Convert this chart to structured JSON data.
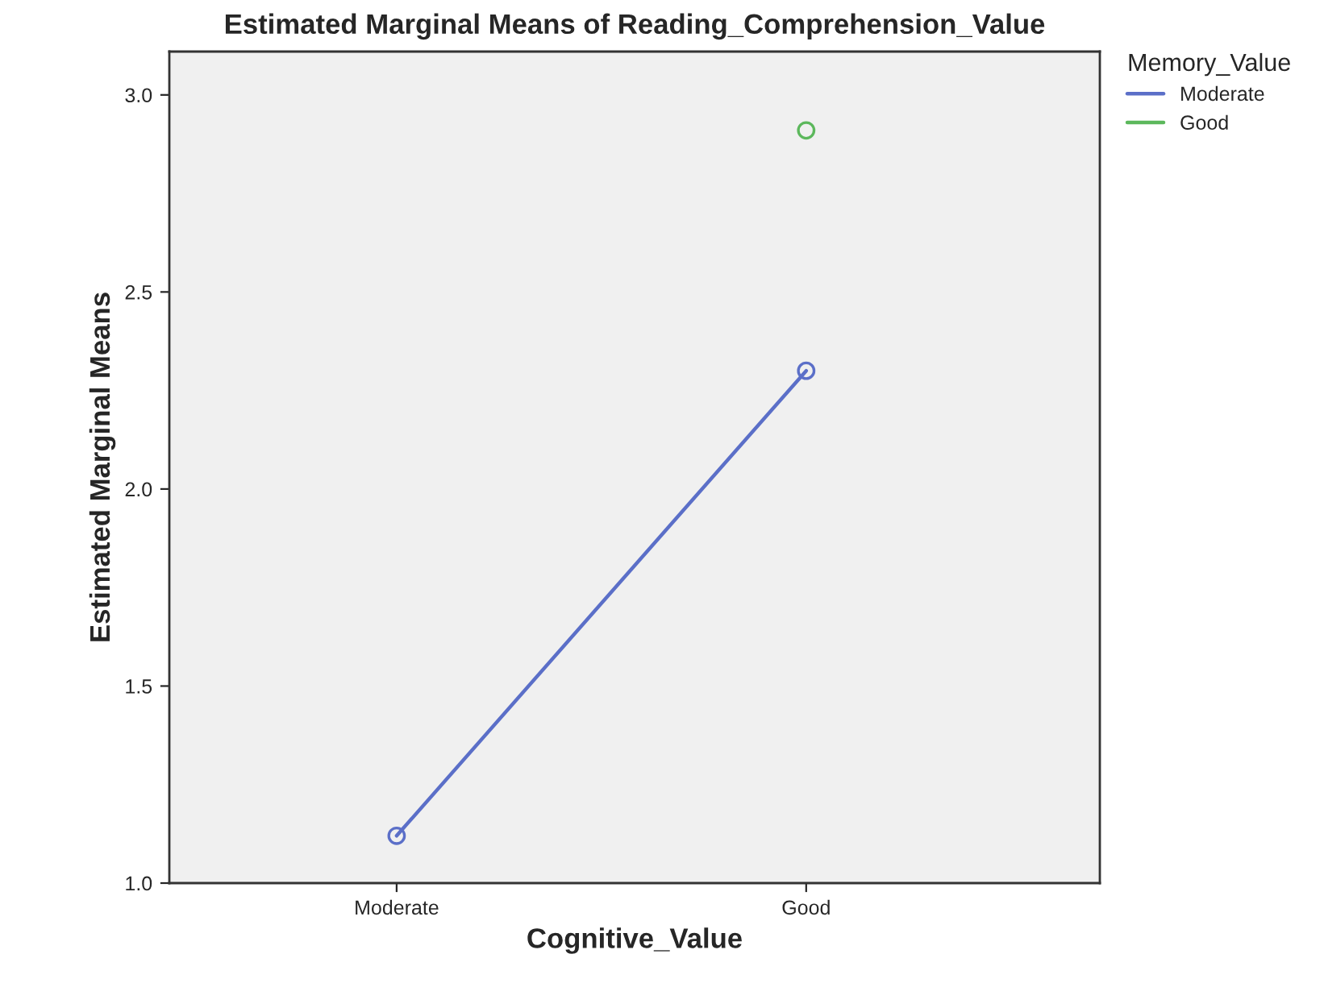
{
  "chart_data": {
    "type": "line",
    "title": "Estimated Marginal Means of Reading_Comprehension_Value",
    "xlabel": "Cognitive_Value",
    "ylabel": "Estimated Marginal Means",
    "legend_title": "Memory_Value",
    "categories": [
      "Moderate",
      "Good"
    ],
    "series": [
      {
        "name": "Moderate",
        "color": "#5b6fc8",
        "values": [
          1.12,
          2.3
        ]
      },
      {
        "name": "Good",
        "color": "#5cb85c",
        "values": [
          null,
          2.91
        ]
      }
    ],
    "ylim": [
      1.0,
      3.11
    ],
    "yticks": [
      {
        "value": 1.0,
        "label": "1.0"
      },
      {
        "value": 1.5,
        "label": "1.5"
      },
      {
        "value": 2.0,
        "label": "2.0"
      },
      {
        "value": 2.5,
        "label": "2.5"
      },
      {
        "value": 3.0,
        "label": "3.0"
      }
    ],
    "marker": "circle",
    "line_style": "solid",
    "legend": "right",
    "grid": false
  }
}
